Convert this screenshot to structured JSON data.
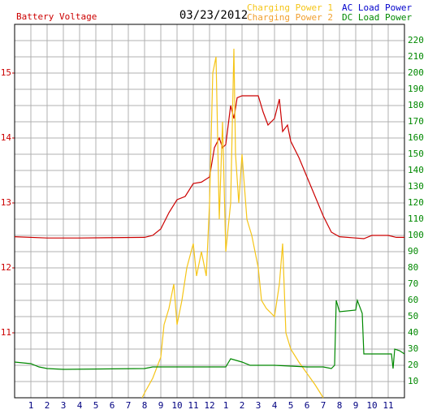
{
  "chart_data": {
    "type": "line",
    "title": "03/23/2012",
    "xlim": [
      0,
      24
    ],
    "xticks": [
      1,
      2,
      3,
      4,
      5,
      6,
      7,
      8,
      9,
      10,
      11,
      12,
      {
        "value": 13,
        "label": "1"
      },
      {
        "value": 14,
        "label": "2"
      },
      {
        "value": 15,
        "label": "3"
      },
      {
        "value": 16,
        "label": "4"
      },
      {
        "value": 17,
        "label": "5"
      },
      {
        "value": 18,
        "label": "6"
      },
      {
        "value": 19,
        "label": "7"
      },
      {
        "value": 20,
        "label": "8"
      },
      {
        "value": 21,
        "label": "9"
      },
      {
        "value": 22,
        "label": "10"
      },
      {
        "value": 23,
        "label": "11"
      }
    ],
    "ylim": [
      10,
      15.75
    ],
    "yticks": [
      11,
      12,
      13,
      14,
      15
    ],
    "y2lim": [
      0,
      230
    ],
    "y2ticks": [
      10,
      20,
      30,
      40,
      50,
      60,
      70,
      80,
      90,
      100,
      110,
      120,
      130,
      140,
      150,
      160,
      170,
      180,
      190,
      200,
      210,
      220
    ],
    "grid": true,
    "series": [
      {
        "name": "Battery Voltage",
        "color": "#cc0000",
        "axis": "y",
        "x": [
          0,
          2,
          4,
          8,
          8.5,
          9,
          9.5,
          10,
          10.5,
          11,
          11.5,
          12,
          12.3,
          12.6,
          12.8,
          13,
          13.3,
          13.5,
          13.7,
          14,
          15,
          15.3,
          15.6,
          16,
          16.3,
          16.5,
          16.8,
          17,
          17.5,
          18,
          18.5,
          19,
          19.5,
          20,
          21,
          21.5,
          22,
          23,
          23.5,
          24
        ],
        "values": [
          12.48,
          12.46,
          12.46,
          12.47,
          12.5,
          12.6,
          12.85,
          13.05,
          13.1,
          13.3,
          13.32,
          13.4,
          13.85,
          14.0,
          13.85,
          13.9,
          14.5,
          14.3,
          14.62,
          14.65,
          14.65,
          14.4,
          14.2,
          14.3,
          14.6,
          14.1,
          14.2,
          13.95,
          13.7,
          13.4,
          13.1,
          12.8,
          12.55,
          12.48,
          12.46,
          12.45,
          12.5,
          12.5,
          12.47,
          12.47
        ]
      },
      {
        "name": "Charging Power 1",
        "color": "#f5c518",
        "axis": "y2",
        "x": [
          7.85,
          8,
          8.5,
          9,
          9.2,
          9.5,
          9.8,
          10,
          10.3,
          10.6,
          11,
          11.2,
          11.5,
          11.8,
          12,
          12.2,
          12.4,
          12.6,
          12.8,
          13,
          13.3,
          13.5,
          13.6,
          13.8,
          14,
          14.3,
          14.6,
          15,
          15.2,
          15.5,
          16,
          16.3,
          16.5,
          16.7,
          17,
          17.5,
          18,
          18.5,
          19
        ],
        "values": [
          0,
          3,
          12,
          25,
          45,
          55,
          70,
          45,
          60,
          80,
          95,
          75,
          90,
          75,
          120,
          200,
          210,
          110,
          170,
          90,
          120,
          215,
          150,
          120,
          150,
          110,
          100,
          80,
          60,
          55,
          50,
          70,
          95,
          40,
          30,
          22,
          15,
          8,
          0
        ]
      },
      {
        "name": "Charging Power 2",
        "color": "#f0a030",
        "axis": "y2",
        "x": [],
        "values": []
      },
      {
        "name": "AC Load Power",
        "color": "#0000cc",
        "axis": "y2",
        "x": [],
        "values": []
      },
      {
        "name": "DC Load Power",
        "color": "#008800",
        "axis": "y2",
        "x": [
          0,
          1,
          1.5,
          2,
          3,
          8,
          8.5,
          12,
          13,
          13.3,
          14,
          14.5,
          16,
          18,
          19,
          19.5,
          19.7,
          19.8,
          20,
          21,
          21.1,
          21.4,
          21.5,
          22.5,
          23.2,
          23.3,
          23.4,
          23.7,
          24
        ],
        "values": [
          22,
          21,
          19,
          18,
          17.5,
          18,
          19,
          19,
          19,
          24,
          22,
          20,
          20,
          19,
          19,
          18,
          20,
          60,
          53,
          54,
          60,
          52,
          27,
          27,
          27,
          18,
          30,
          29,
          27
        ]
      }
    ]
  }
}
